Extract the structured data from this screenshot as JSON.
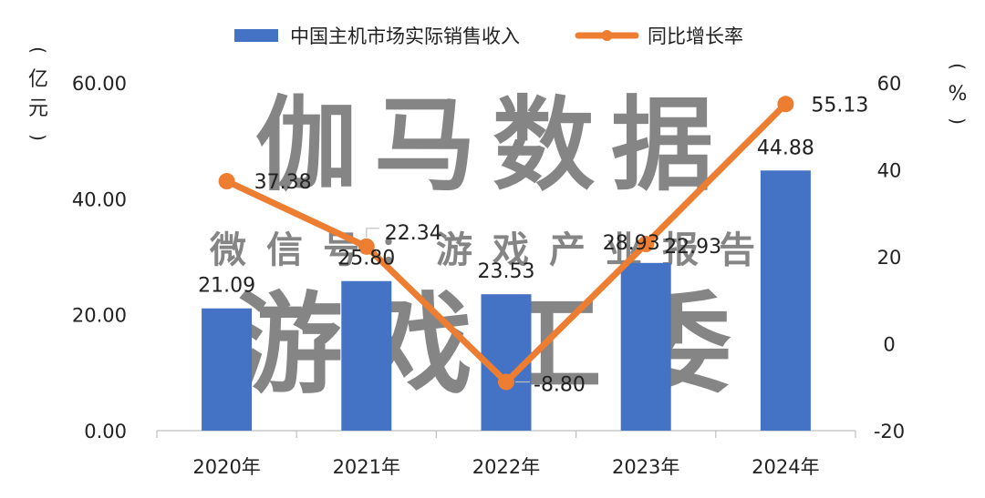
{
  "chart_data": {
    "type": "bar",
    "categories": [
      "2020年",
      "2021年",
      "2022年",
      "2023年",
      "2024年"
    ],
    "series": [
      {
        "name": "中国主机市场实际销售收入",
        "type": "bar",
        "axis": "left",
        "color": "#4472C4",
        "values": [
          21.09,
          25.8,
          23.53,
          28.93,
          44.88
        ],
        "labels": [
          "21.09",
          "25.80",
          "23.53",
          "28.93",
          "44.88"
        ]
      },
      {
        "name": "同比增长率",
        "type": "line",
        "axis": "right",
        "color": "#ED7D31",
        "values": [
          37.38,
          22.34,
          -8.8,
          22.93,
          55.13
        ],
        "labels": [
          "37.38",
          "22.34",
          "-8.80",
          "22.93",
          "55.13"
        ]
      }
    ],
    "y_left": {
      "label": "（亿元）",
      "range": [
        0,
        60
      ],
      "ticks": [
        "0.00",
        "20.00",
        "40.00",
        "60.00"
      ]
    },
    "y_right": {
      "label": "（%）",
      "range": [
        -20,
        60
      ],
      "ticks": [
        "-20",
        "0",
        "20",
        "40",
        "60"
      ]
    },
    "legend_position": "top",
    "grid": false
  },
  "watermark": {
    "line1": "伽马数据",
    "line2": "微信号：游戏产业报告",
    "line3": "游戏工委"
  }
}
